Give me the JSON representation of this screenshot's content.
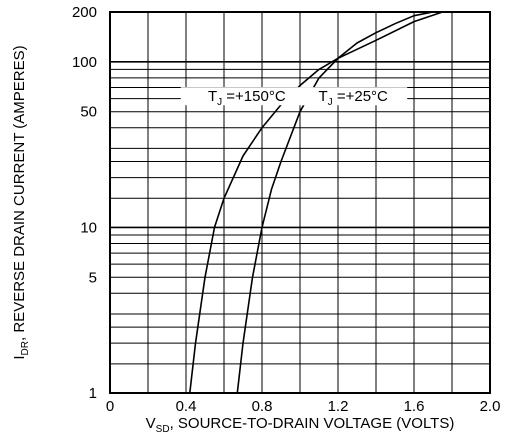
{
  "chart_data": {
    "type": "line",
    "title": "",
    "xlabel": {
      "prefix": "V",
      "subscript": "SD",
      "text": ", SOURCE-TO-DRAIN VOLTAGE (VOLTS)"
    },
    "ylabel": {
      "prefix": "I",
      "subscript": "DR",
      "text": ", REVERSE DRAIN CURRENT (AMPERES)"
    },
    "xlim": [
      0,
      2.0
    ],
    "ylim": [
      1,
      200
    ],
    "yscale": "log",
    "grid": true,
    "x_ticks": [
      {
        "value": 0,
        "label": "0"
      },
      {
        "value": 0.4,
        "label": "0.4"
      },
      {
        "value": 0.8,
        "label": "0.8"
      },
      {
        "value": 1.2,
        "label": "1.2"
      },
      {
        "value": 1.6,
        "label": "1.6"
      },
      {
        "value": 2.0,
        "label": "2.0"
      }
    ],
    "y_ticks": [
      {
        "value": 1,
        "label": "1"
      },
      {
        "value": 5,
        "label": "5"
      },
      {
        "value": 10,
        "label": "10"
      },
      {
        "value": 50,
        "label": "50"
      },
      {
        "value": 100,
        "label": "100"
      },
      {
        "value": 200,
        "label": "200"
      }
    ],
    "series": [
      {
        "name": "T_J = +150°C",
        "label_prefix": "T",
        "label_sub": "J",
        "label_text": " =+150°C",
        "color": "#000000",
        "x": [
          0.42,
          0.45,
          0.5,
          0.55,
          0.6,
          0.7,
          0.8,
          0.9,
          1.0,
          1.1,
          1.2,
          1.4,
          1.6,
          1.75
        ],
        "y": [
          1,
          2,
          5,
          10,
          15,
          27,
          40,
          55,
          72,
          90,
          105,
          135,
          175,
          200
        ]
      },
      {
        "name": "T_J = +25°C",
        "label_prefix": "T",
        "label_sub": "J",
        "label_text": " =+25°C",
        "color": "#000000",
        "x": [
          0.67,
          0.7,
          0.75,
          0.8,
          0.85,
          0.9,
          1.0,
          1.1,
          1.2,
          1.3,
          1.4,
          1.5,
          1.6,
          1.7
        ],
        "y": [
          1,
          2,
          5,
          10,
          17,
          25,
          50,
          80,
          105,
          130,
          150,
          170,
          190,
          200
        ]
      }
    ],
    "minor_y_gridlines": [
      2,
      3,
      4,
      5,
      6,
      7,
      8,
      9,
      20,
      30,
      40,
      50,
      60,
      70,
      80,
      90
    ],
    "minor_x_gridlines": [
      0.2,
      0.4,
      0.6,
      0.8,
      1.0,
      1.2,
      1.4,
      1.6,
      1.8
    ]
  }
}
